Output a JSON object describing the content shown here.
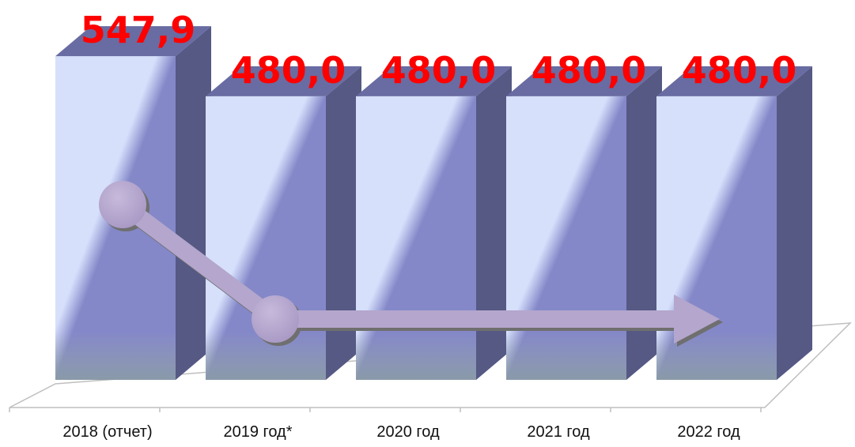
{
  "chart_data": {
    "type": "bar",
    "style": "3d-column",
    "categories": [
      "2018 (отчет)",
      "2019 год*",
      "2020 год",
      "2021 год",
      "2022 год"
    ],
    "values": [
      547.9,
      480.0,
      480.0,
      480.0,
      480.0
    ],
    "value_labels": [
      "547,9",
      "480,0",
      "480,0",
      "480,0",
      "480,0"
    ],
    "title": "",
    "xlabel": "",
    "ylabel": "",
    "ylim": [
      0,
      548
    ],
    "y_axis_visible": false,
    "grid": false,
    "legend": "none",
    "trend_arrow": true,
    "colors": {
      "bar_front": "#8488c8",
      "bar_light": "#d6e0fb",
      "bar_side": "#555984",
      "bar_top": "#686ca2",
      "value_label": "#ff0000",
      "arrow": "#b4a6cc",
      "axis": "#bfbfbf"
    }
  }
}
